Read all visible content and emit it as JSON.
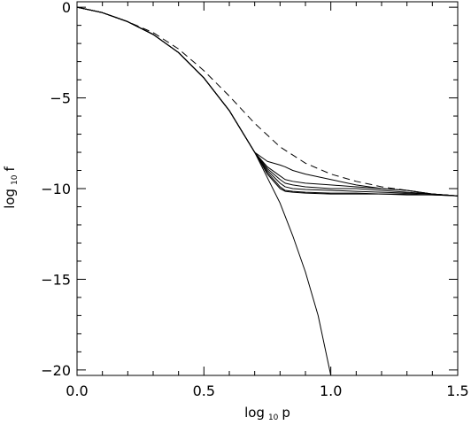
{
  "chart_data": {
    "type": "line",
    "title": "",
    "xlabel": {
      "pre": "log",
      "sub": "10",
      "post": "p"
    },
    "ylabel": {
      "pre": "log",
      "sub": "10",
      "post": "f"
    },
    "xlim": [
      0.0,
      1.5
    ],
    "ylim": [
      -20.3,
      0.3
    ],
    "x_ticks": [
      {
        "value": 0.0,
        "label": "0.0"
      },
      {
        "value": 0.5,
        "label": "0.5"
      },
      {
        "value": 1.0,
        "label": "1.0"
      },
      {
        "value": 1.5,
        "label": "1.5"
      }
    ],
    "y_ticks": [
      {
        "value": 0,
        "label": "0"
      },
      {
        "value": -5,
        "label": "−5"
      },
      {
        "value": -10,
        "label": "−10"
      },
      {
        "value": -15,
        "label": "−15"
      },
      {
        "value": -20,
        "label": "−20"
      }
    ],
    "x_minor_step": 0.1,
    "y_minor_step": 1,
    "grid": false,
    "legend": "none",
    "colors": {
      "line": "#000000",
      "background": "#ffffff"
    },
    "series": [
      {
        "style": "solid",
        "x": [
          0.0,
          0.1,
          0.2,
          0.3,
          0.4,
          0.5,
          0.6,
          0.7,
          0.75,
          0.8,
          0.85,
          0.9,
          0.95,
          1.0
        ],
        "y": [
          0.0,
          -0.3,
          -0.8,
          -1.5,
          -2.5,
          -3.9,
          -5.7,
          -8.0,
          -9.4,
          -10.8,
          -12.6,
          -14.6,
          -17.0,
          -20.3
        ]
      },
      {
        "style": "dashed",
        "x": [
          0.0,
          0.1,
          0.2,
          0.3,
          0.4,
          0.5,
          0.6,
          0.7,
          0.8,
          0.9,
          1.0,
          1.1,
          1.2,
          1.3,
          1.4,
          1.5
        ],
        "y": [
          0.0,
          -0.3,
          -0.8,
          -1.4,
          -2.3,
          -3.5,
          -4.9,
          -6.4,
          -7.7,
          -8.6,
          -9.2,
          -9.6,
          -9.9,
          -10.1,
          -10.3,
          -10.4
        ]
      },
      {
        "style": "solid",
        "x": [
          0.0,
          0.1,
          0.2,
          0.3,
          0.4,
          0.5,
          0.6,
          0.7,
          0.75,
          0.8,
          0.82,
          0.85,
          0.9,
          1.0,
          1.1,
          1.2,
          1.3,
          1.4,
          1.5
        ],
        "y": [
          0.0,
          -0.3,
          -0.8,
          -1.5,
          -2.5,
          -3.9,
          -5.7,
          -8.0,
          -8.5,
          -8.7,
          -8.8,
          -9.0,
          -9.2,
          -9.5,
          -9.8,
          -10.0,
          -10.1,
          -10.3,
          -10.4
        ]
      },
      {
        "style": "solid",
        "x": [
          0.0,
          0.1,
          0.2,
          0.3,
          0.4,
          0.5,
          0.6,
          0.7,
          0.75,
          0.8,
          0.82,
          0.85,
          0.9,
          1.0,
          1.1,
          1.2,
          1.3,
          1.4,
          1.5
        ],
        "y": [
          0.0,
          -0.3,
          -0.8,
          -1.5,
          -2.5,
          -3.9,
          -5.7,
          -8.0,
          -8.8,
          -9.3,
          -9.5,
          -9.6,
          -9.7,
          -9.8,
          -9.9,
          -10.0,
          -10.1,
          -10.3,
          -10.4
        ]
      },
      {
        "style": "solid",
        "x": [
          0.0,
          0.1,
          0.2,
          0.3,
          0.4,
          0.5,
          0.6,
          0.7,
          0.75,
          0.8,
          0.82,
          0.85,
          0.9,
          1.0,
          1.1,
          1.2,
          1.3,
          1.4,
          1.5
        ],
        "y": [
          0.0,
          -0.3,
          -0.8,
          -1.5,
          -2.5,
          -3.9,
          -5.7,
          -8.0,
          -8.9,
          -9.5,
          -9.7,
          -9.8,
          -9.9,
          -10.0,
          -10.0,
          -10.1,
          -10.2,
          -10.3,
          -10.4
        ]
      },
      {
        "style": "solid",
        "x": [
          0.0,
          0.1,
          0.2,
          0.3,
          0.4,
          0.5,
          0.6,
          0.7,
          0.75,
          0.8,
          0.82,
          0.85,
          0.9,
          1.0,
          1.1,
          1.2,
          1.3,
          1.4,
          1.5
        ],
        "y": [
          0.0,
          -0.3,
          -0.8,
          -1.5,
          -2.5,
          -3.9,
          -5.7,
          -8.0,
          -9.0,
          -9.7,
          -9.9,
          -10.0,
          -10.05,
          -10.1,
          -10.15,
          -10.2,
          -10.25,
          -10.3,
          -10.4
        ]
      },
      {
        "style": "solid",
        "x": [
          0.0,
          0.1,
          0.2,
          0.3,
          0.4,
          0.5,
          0.6,
          0.7,
          0.75,
          0.8,
          0.82,
          0.85,
          0.9,
          1.0,
          1.1,
          1.2,
          1.3,
          1.4,
          1.5
        ],
        "y": [
          0.0,
          -0.3,
          -0.8,
          -1.5,
          -2.5,
          -3.9,
          -5.7,
          -8.0,
          -9.1,
          -9.9,
          -10.1,
          -10.15,
          -10.2,
          -10.25,
          -10.25,
          -10.3,
          -10.3,
          -10.35,
          -10.4
        ]
      },
      {
        "style": "solid",
        "x": [
          0.0,
          0.1,
          0.2,
          0.3,
          0.4,
          0.5,
          0.6,
          0.7,
          0.75,
          0.8,
          0.82,
          0.85,
          0.9,
          1.0,
          1.1,
          1.2,
          1.3,
          1.4,
          1.5
        ],
        "y": [
          0.0,
          -0.3,
          -0.8,
          -1.5,
          -2.5,
          -3.9,
          -5.7,
          -8.0,
          -9.2,
          -10.0,
          -10.15,
          -10.2,
          -10.25,
          -10.3,
          -10.3,
          -10.3,
          -10.35,
          -10.35,
          -10.4
        ]
      }
    ]
  }
}
